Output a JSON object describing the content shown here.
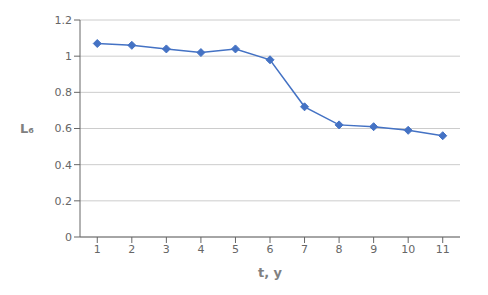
{
  "chart_data": {
    "type": "line",
    "x": [
      1,
      2,
      3,
      4,
      5,
      6,
      7,
      8,
      9,
      10,
      11
    ],
    "values": [
      1.07,
      1.06,
      1.04,
      1.02,
      1.04,
      0.98,
      0.72,
      0.62,
      0.61,
      0.59,
      0.56
    ],
    "xlabel": "t, y",
    "ylabel": "L₆",
    "xlim": [
      0.5,
      11.5
    ],
    "xticks": [
      1,
      2,
      3,
      4,
      5,
      6,
      7,
      8,
      9,
      10,
      11
    ],
    "ylim": [
      0,
      1.2
    ],
    "yticks": [
      0,
      0.2,
      0.4,
      0.6,
      0.8,
      1,
      1.2
    ],
    "color": "#4472C4",
    "marker": "diamond",
    "grid": true
  }
}
